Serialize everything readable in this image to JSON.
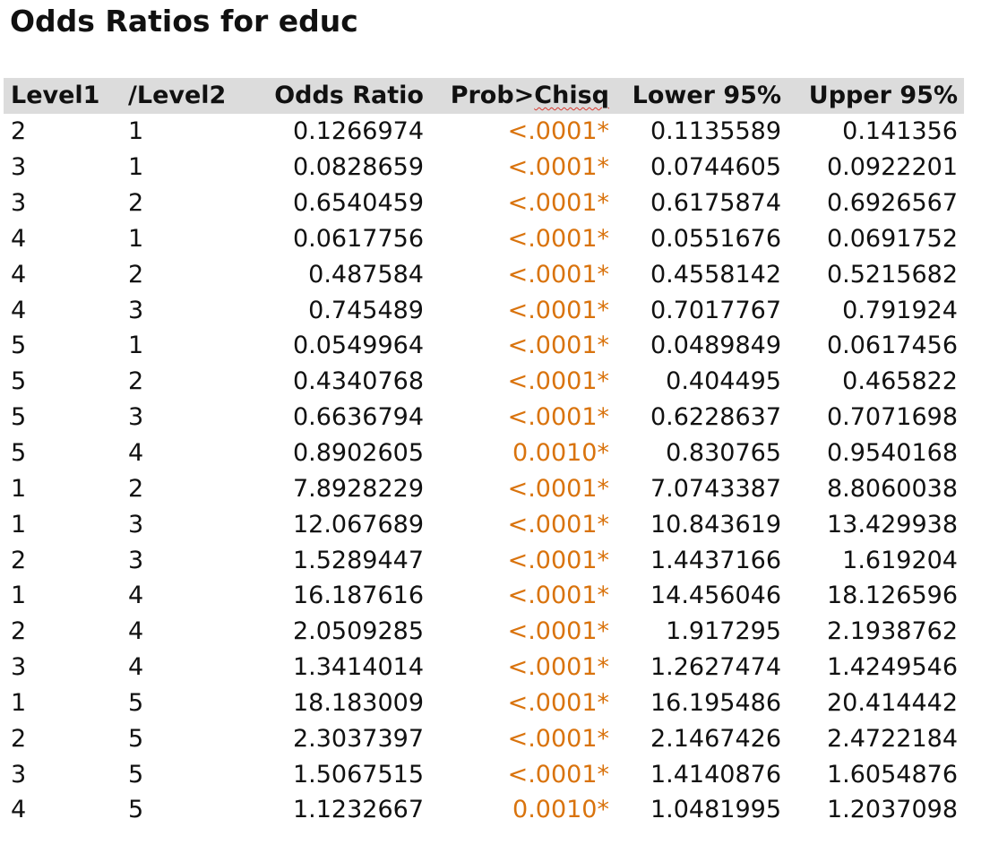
{
  "title": "Odds Ratios for educ",
  "columns": {
    "level1": "Level1",
    "level2": "/Level2",
    "odds_ratio": "Odds Ratio",
    "prob_prefix": "Prob>",
    "prob_suffix": "Chisq",
    "lower": "Lower 95%",
    "upper": "Upper 95%"
  },
  "colors": {
    "pvalue": "#d9730d",
    "header_bg": "#dcdcdc",
    "spell_underline": "#d83a2f"
  },
  "rows": [
    {
      "l1": "2",
      "l2": "1",
      "or": "0.1266974",
      "p": "<.0001*",
      "lo": "0.1135589",
      "up": "0.141356"
    },
    {
      "l1": "3",
      "l2": "1",
      "or": "0.0828659",
      "p": "<.0001*",
      "lo": "0.0744605",
      "up": "0.0922201"
    },
    {
      "l1": "3",
      "l2": "2",
      "or": "0.6540459",
      "p": "<.0001*",
      "lo": "0.6175874",
      "up": "0.6926567"
    },
    {
      "l1": "4",
      "l2": "1",
      "or": "0.0617756",
      "p": "<.0001*",
      "lo": "0.0551676",
      "up": "0.0691752"
    },
    {
      "l1": "4",
      "l2": "2",
      "or": "0.487584",
      "p": "<.0001*",
      "lo": "0.4558142",
      "up": "0.5215682"
    },
    {
      "l1": "4",
      "l2": "3",
      "or": "0.745489",
      "p": "<.0001*",
      "lo": "0.7017767",
      "up": "0.791924"
    },
    {
      "l1": "5",
      "l2": "1",
      "or": "0.0549964",
      "p": "<.0001*",
      "lo": "0.0489849",
      "up": "0.0617456"
    },
    {
      "l1": "5",
      "l2": "2",
      "or": "0.4340768",
      "p": "<.0001*",
      "lo": "0.404495",
      "up": "0.465822"
    },
    {
      "l1": "5",
      "l2": "3",
      "or": "0.6636794",
      "p": "<.0001*",
      "lo": "0.6228637",
      "up": "0.7071698"
    },
    {
      "l1": "5",
      "l2": "4",
      "or": "0.8902605",
      "p": "0.0010*",
      "lo": "0.830765",
      "up": "0.9540168"
    },
    {
      "l1": "1",
      "l2": "2",
      "or": "7.8928229",
      "p": "<.0001*",
      "lo": "7.0743387",
      "up": "8.8060038"
    },
    {
      "l1": "1",
      "l2": "3",
      "or": "12.067689",
      "p": "<.0001*",
      "lo": "10.843619",
      "up": "13.429938"
    },
    {
      "l1": "2",
      "l2": "3",
      "or": "1.5289447",
      "p": "<.0001*",
      "lo": "1.4437166",
      "up": "1.619204"
    },
    {
      "l1": "1",
      "l2": "4",
      "or": "16.187616",
      "p": "<.0001*",
      "lo": "14.456046",
      "up": "18.126596"
    },
    {
      "l1": "2",
      "l2": "4",
      "or": "2.0509285",
      "p": "<.0001*",
      "lo": "1.917295",
      "up": "2.1938762"
    },
    {
      "l1": "3",
      "l2": "4",
      "or": "1.3414014",
      "p": "<.0001*",
      "lo": "1.2627474",
      "up": "1.4249546"
    },
    {
      "l1": "1",
      "l2": "5",
      "or": "18.183009",
      "p": "<.0001*",
      "lo": "16.195486",
      "up": "20.414442"
    },
    {
      "l1": "2",
      "l2": "5",
      "or": "2.3037397",
      "p": "<.0001*",
      "lo": "2.1467426",
      "up": "2.4722184"
    },
    {
      "l1": "3",
      "l2": "5",
      "or": "1.5067515",
      "p": "<.0001*",
      "lo": "1.4140876",
      "up": "1.6054876"
    },
    {
      "l1": "4",
      "l2": "5",
      "or": "1.1232667",
      "p": "0.0010*",
      "lo": "1.0481995",
      "up": "1.2037098"
    }
  ]
}
